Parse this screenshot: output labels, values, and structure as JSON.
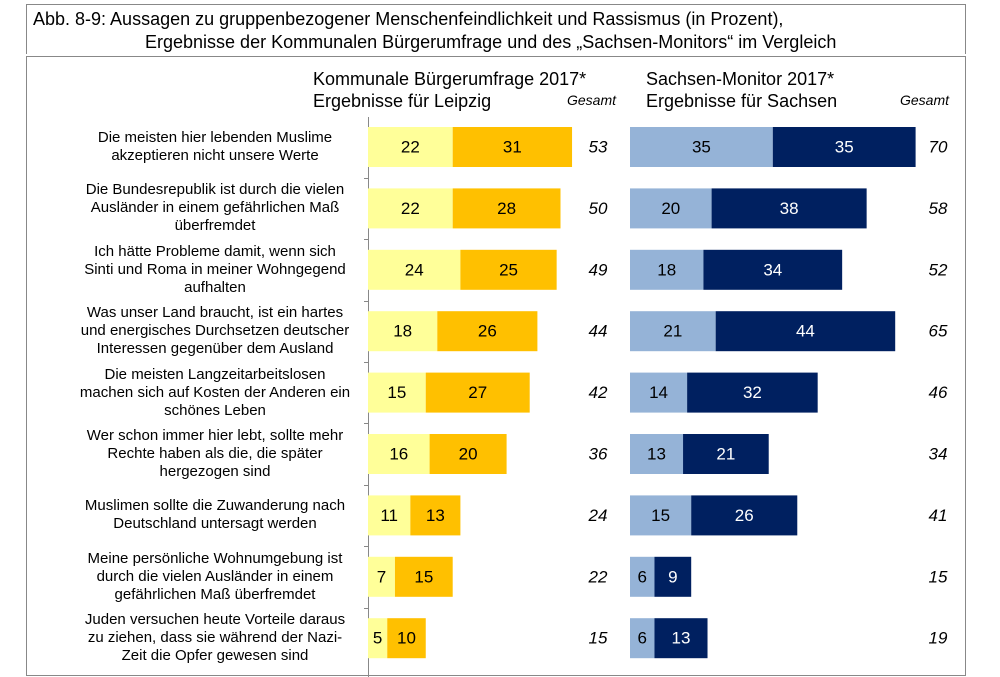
{
  "title": {
    "line1": "Abb. 8-9: Aussagen zu gruppenbezogener Menschenfeindlichkeit und Rassismus (in Prozent),",
    "line2": "Ergebnisse der Kommunalen Bürgerumfrage und des „Sachsen-Monitors“ im Vergleich"
  },
  "colors": {
    "leipzig_a": "#FFFF99",
    "leipzig_b": "#FFC000",
    "sachsen_a": "#95B3D7",
    "sachsen_b": "#002060"
  },
  "chart_data": [
    {
      "type": "bar",
      "orientation": "horizontal-stacked",
      "title": "Kommunale Bürgerumfrage 2017*\nErgebnisse für Leipzig",
      "total_label": "Gesamt",
      "categories": [
        "Die meisten hier lebenden Muslime\nakzeptieren nicht unsere Werte",
        "Die Bundesrepublik ist durch die vielen\nAusländer in einem gefährlichen Maß\nüberfremdet",
        "Ich hätte Probleme damit, wenn sich\nSinti und Roma in meiner Wohngegend\naufhalten",
        "Was unser Land braucht, ist ein hartes\nund energisches Durchsetzen deutscher\nInteressen gegenüber dem Ausland",
        "Die meisten Langzeitarbeitslosen\nmachen sich auf Kosten der Anderen ein\nschönes Leben",
        "Wer schon immer hier lebt, sollte mehr\nRechte haben als die, die später\nhergezogen sind",
        "Muslimen sollte die Zuwanderung nach\nDeutschland untersagt werden",
        "Meine persönliche Wohnumgebung ist\ndurch die vielen Ausländer in einem\ngefährlichen Maß überfremdet",
        "Juden versuchen heute Vorteile daraus\nzu ziehen, dass sie während der Nazi-\nZeit die Opfer gewesen sind"
      ],
      "series": [
        {
          "values": [
            22,
            22,
            24,
            18,
            15,
            16,
            11,
            7,
            5
          ]
        },
        {
          "values": [
            31,
            28,
            25,
            26,
            27,
            20,
            13,
            15,
            10
          ]
        }
      ],
      "totals": [
        53,
        50,
        49,
        44,
        42,
        36,
        24,
        22,
        15
      ]
    },
    {
      "type": "bar",
      "orientation": "horizontal-stacked",
      "title": "Sachsen-Monitor 2017*\nErgebnisse für Sachsen",
      "total_label": "Gesamt",
      "series": [
        {
          "values": [
            35,
            20,
            18,
            21,
            14,
            13,
            15,
            6,
            6
          ]
        },
        {
          "values": [
            35,
            38,
            34,
            44,
            32,
            21,
            26,
            9,
            13
          ]
        }
      ],
      "totals": [
        70,
        58,
        52,
        65,
        46,
        34,
        41,
        15,
        19
      ]
    }
  ]
}
